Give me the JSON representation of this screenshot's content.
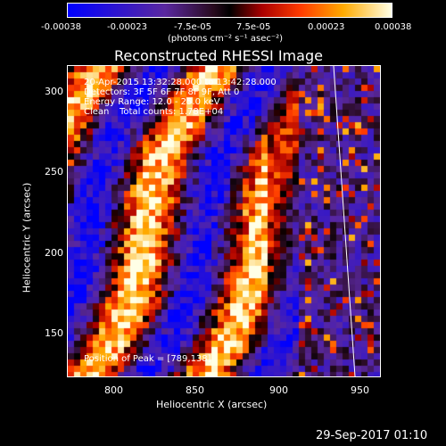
{
  "colorbar": {
    "ticks": [
      "-0.00038",
      "-0.00023",
      "-7.5e-05",
      "7.5e-05",
      "0.00023",
      "0.00038"
    ],
    "unit_label": "(photons cm⁻² s⁻¹ asec⁻²)"
  },
  "plot": {
    "title": "Reconstructed RHESSI Image",
    "xlabel": "Heliocentric X (arcsec)",
    "ylabel": "Heliocentric Y (arcsec)",
    "xticks": [
      "800",
      "850",
      "900",
      "950"
    ],
    "yticks": [
      "300",
      "250",
      "200",
      "150"
    ],
    "xlim": [
      770,
      962
    ],
    "ylim": [
      120,
      315
    ]
  },
  "info": {
    "time_range": "20-Apr-2015 13:32:28.000 to 13:42:28.000",
    "detectors": "Detectors: 3F 5F 6F 7F 8F 9F, Att 0",
    "energy": "Energy Range: 12.0 - 25.0 keV",
    "method": "Clean",
    "counts": "Total counts: 1.78E+04",
    "peak": "Position of Peak = [789,138]"
  },
  "footer": {
    "timestamp": "29-Sep-2017 01:10"
  }
}
